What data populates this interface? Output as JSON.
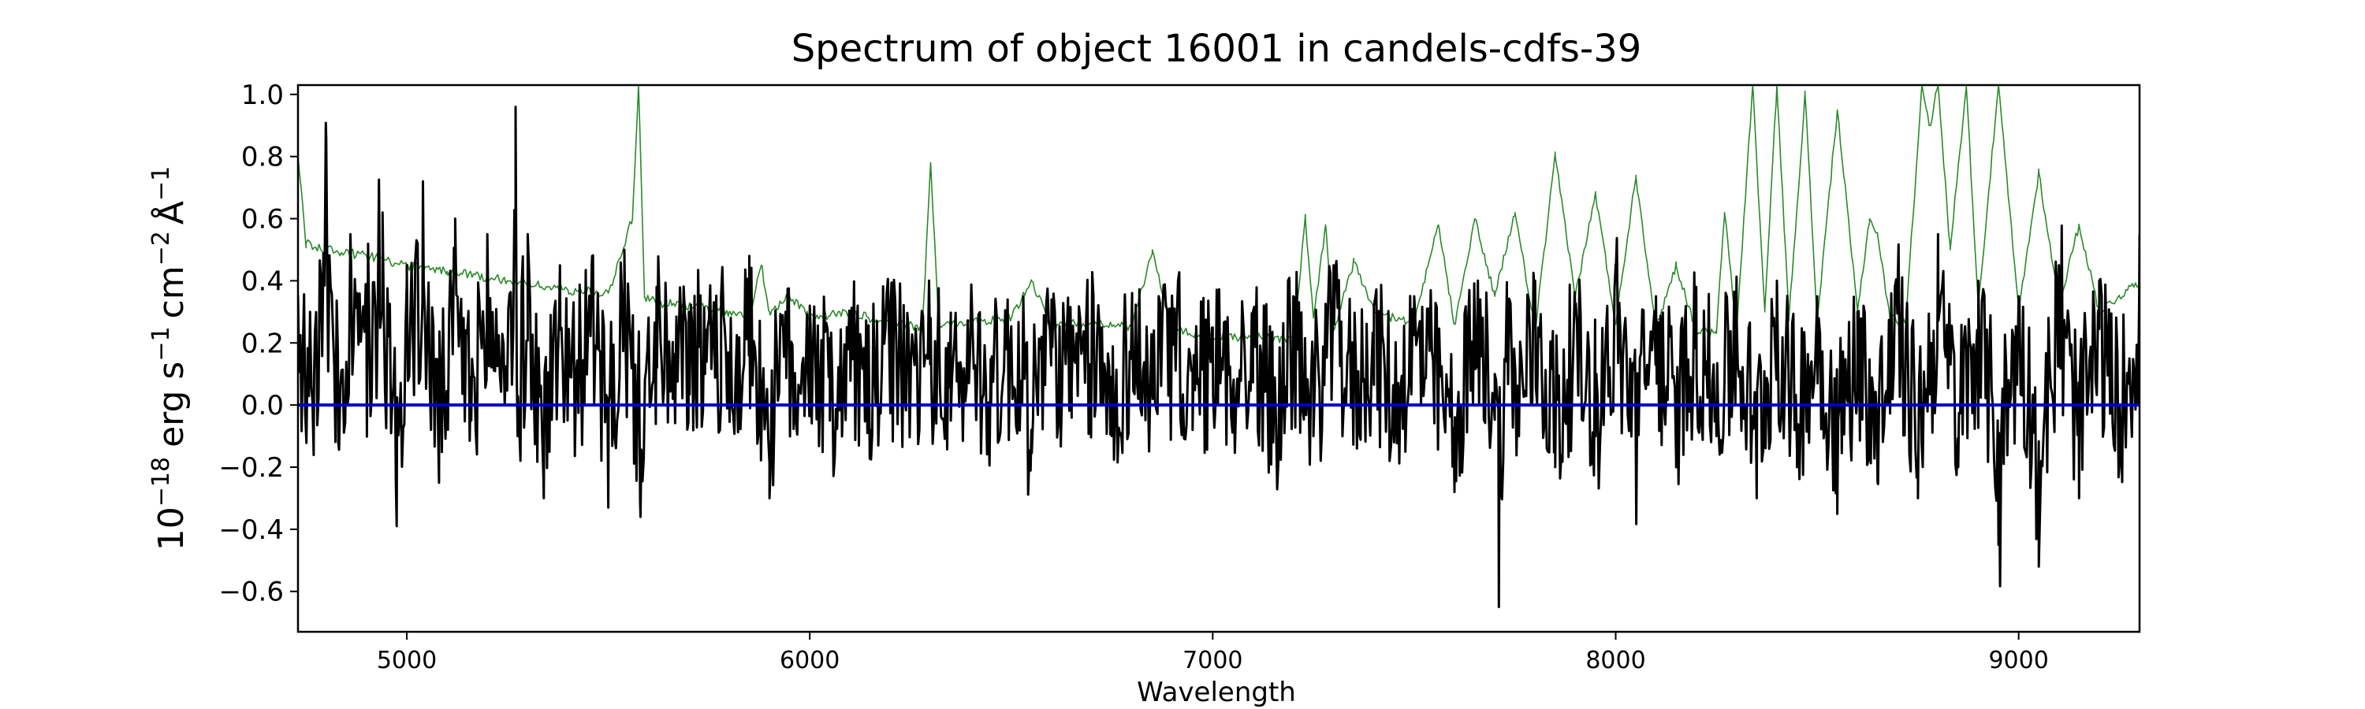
{
  "chart_data": {
    "type": "line",
    "title": "Spectrum of object 16001 in candels-cdfs-39",
    "xlabel": "Wavelength",
    "ylabel_base": "10",
    "ylabel_exp": "−18",
    "ylabel_text": "erg s",
    "ylabel_full": "10⁻¹⁸ erg s⁻¹ cm⁻² Å⁻¹",
    "xlim": [
      4730,
      9300
    ],
    "ylim": [
      -0.73,
      1.03
    ],
    "x_ticks": [
      5000,
      6000,
      7000,
      8000,
      9000
    ],
    "x_tick_labels": [
      "5000",
      "6000",
      "7000",
      "8000",
      "9000"
    ],
    "y_ticks": [
      1.0,
      0.8,
      0.6,
      0.4,
      0.2,
      0.0,
      -0.2,
      -0.4,
      -0.6
    ],
    "y_tick_labels": [
      "1.0",
      "0.8",
      "0.6",
      "0.4",
      "0.2",
      "0.0",
      "−0.2",
      "−0.4",
      "−0.6"
    ],
    "grid": false,
    "series": [
      {
        "role": "error",
        "color": "#2a8a2a",
        "x": [
          4730,
          4750,
          4800,
          4900,
          5000,
          5100,
          5200,
          5300,
          5400,
          5500,
          5560,
          5575,
          5590,
          5620,
          5700,
          5800,
          5850,
          5880,
          5900,
          5950,
          6000,
          6100,
          6200,
          6280,
          6300,
          6320,
          6400,
          6500,
          6550,
          6600,
          6700,
          6800,
          6850,
          6900,
          7000,
          7100,
          7200,
          7230,
          7250,
          7280,
          7300,
          7350,
          7400,
          7500,
          7560,
          7600,
          7650,
          7700,
          7750,
          7800,
          7850,
          7900,
          7950,
          8000,
          8050,
          8100,
          8150,
          8200,
          8250,
          8270,
          8300,
          8340,
          8370,
          8400,
          8430,
          8470,
          8500,
          8550,
          8600,
          8630,
          8650,
          8680,
          8720,
          8760,
          8780,
          8800,
          8830,
          8870,
          8900,
          8950,
          9000,
          9050,
          9100,
          9150,
          9200,
          9250,
          9300
        ],
        "y": [
          0.8,
          0.52,
          0.5,
          0.48,
          0.45,
          0.43,
          0.41,
          0.39,
          0.37,
          0.36,
          0.6,
          1.03,
          0.35,
          0.33,
          0.32,
          0.3,
          0.28,
          0.45,
          0.3,
          0.35,
          0.28,
          0.3,
          0.26,
          0.25,
          0.78,
          0.26,
          0.27,
          0.28,
          0.4,
          0.25,
          0.27,
          0.25,
          0.5,
          0.24,
          0.22,
          0.22,
          0.21,
          0.6,
          0.28,
          0.58,
          0.24,
          0.46,
          0.3,
          0.26,
          0.58,
          0.26,
          0.6,
          0.35,
          0.62,
          0.24,
          0.8,
          0.35,
          0.68,
          0.26,
          0.74,
          0.25,
          0.45,
          0.24,
          0.23,
          0.62,
          0.24,
          1.03,
          0.3,
          1.03,
          0.28,
          1.0,
          0.27,
          0.95,
          0.3,
          0.6,
          0.55,
          0.28,
          0.27,
          1.03,
          0.9,
          1.03,
          0.5,
          1.03,
          0.32,
          1.03,
          0.3,
          0.75,
          0.32,
          0.58,
          0.3,
          0.35,
          0.4
        ]
      },
      {
        "role": "flux",
        "color": "#000000",
        "x": [
          4730,
          4770,
          4800,
          4830,
          4860,
          4900,
          4940,
          4975,
          5000,
          5040,
          5080,
          5120,
          5160,
          5200,
          5240,
          5270,
          5275,
          5300,
          5340,
          5380,
          5420,
          5460,
          5500,
          5540,
          5580,
          5620,
          5660,
          5700,
          5740,
          5780,
          5820,
          5850,
          5900,
          5940,
          5960,
          6000,
          6050,
          6100,
          6150,
          6200,
          6250,
          6300,
          6350,
          6400,
          6450,
          6500,
          6550,
          6600,
          6650,
          6700,
          6750,
          6800,
          6850,
          6900,
          6950,
          7000,
          7050,
          7100,
          7150,
          7200,
          7250,
          7300,
          7350,
          7400,
          7450,
          7500,
          7550,
          7600,
          7650,
          7700,
          7710,
          7730,
          7760,
          7800,
          7850,
          7900,
          7950,
          8000,
          8050,
          8100,
          8150,
          8200,
          8250,
          8300,
          8350,
          8400,
          8450,
          8500,
          8550,
          8600,
          8650,
          8700,
          8750,
          8800,
          8850,
          8900,
          8950,
          9000,
          9050,
          9100,
          9150,
          9200,
          9250,
          9300
        ],
        "y": [
          0.35,
          0.1,
          0.86,
          -0.12,
          0.55,
          0.25,
          0.62,
          -0.39,
          0.45,
          0.72,
          -0.25,
          0.6,
          -0.05,
          0.55,
          0.2,
          0.96,
          -0.1,
          0.55,
          -0.3,
          0.45,
          0.1,
          0.48,
          -0.33,
          0.5,
          -0.36,
          0.38,
          0.02,
          0.3,
          0.1,
          0.35,
          0.05,
          0.48,
          -0.3,
          0.3,
          0.05,
          0.32,
          -0.05,
          0.25,
          -0.08,
          0.3,
          0.05,
          0.28,
          -0.05,
          0.32,
          0.0,
          0.25,
          -0.08,
          0.34,
          0.05,
          0.25,
          -0.1,
          0.32,
          0.05,
          0.3,
          -0.08,
          0.25,
          0.05,
          0.3,
          -0.12,
          0.35,
          -0.1,
          0.45,
          0.0,
          0.32,
          -0.12,
          0.35,
          0.05,
          -0.28,
          0.3,
          0.1,
          -0.65,
          0.35,
          -0.1,
          0.4,
          -0.2,
          0.3,
          -0.1,
          0.42,
          -0.15,
          0.35,
          -0.2,
          0.38,
          -0.1,
          0.3,
          -0.3,
          0.4,
          -0.2,
          0.35,
          -0.35,
          0.3,
          -0.25,
          0.4,
          -0.3,
          0.55,
          -0.2,
          0.4,
          -0.45,
          0.35,
          -0.52,
          0.45,
          -0.3,
          0.4,
          -0.2,
          0.55
        ]
      },
      {
        "role": "zero",
        "color": "#0000cc",
        "x": [
          4730,
          9300
        ],
        "y": [
          0.0,
          0.0
        ]
      }
    ]
  }
}
